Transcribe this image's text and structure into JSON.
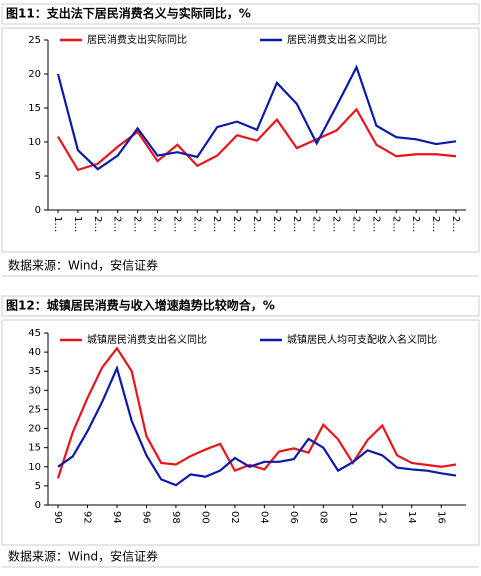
{
  "charts": [
    {
      "caption": "图11：支出法下居民消费名义与实际同比，%",
      "source": "数据来源：Wind，安信证券",
      "chart_data": {
        "type": "line",
        "categories": [
          "1…",
          "1…",
          "2…",
          "2…",
          "2…",
          "2…",
          "2…",
          "2…",
          "2…",
          "2…",
          "2…",
          "2…",
          "2…",
          "2…",
          "2…",
          "2…",
          "2…",
          "2…",
          "2…",
          "2…",
          "2…"
        ],
        "series": [
          {
            "name": "居民消费支出实际同比",
            "color": "#e8141c",
            "values": [
              10.8,
              5.9,
              6.8,
              9.3,
              11.5,
              7.2,
              9.6,
              6.5,
              8,
              11,
              10.2,
              13.3,
              9.1,
              10.4,
              11.7,
              14.8,
              9.6,
              7.9,
              8.2,
              8.2,
              7.9
            ]
          },
          {
            "name": "居民消费支出名义同比",
            "color": "#0c1aa8",
            "values": [
              20,
              8.8,
              6,
              8,
              12,
              8,
              8.5,
              7.8,
              12.2,
              13,
              11.8,
              18.7,
              15.6,
              9.8,
              15.3,
              21,
              12.4,
              10.7,
              10.4,
              9.7,
              10.1
            ]
          }
        ],
        "ylim": [
          0,
          25
        ],
        "yticks": [
          0,
          5,
          10,
          15,
          20,
          25
        ]
      }
    },
    {
      "caption": "图12：城镇居民消费与收入增速趋势比较吻合，%",
      "source": "数据来源：Wind，安信证券",
      "chart_data": {
        "type": "line",
        "categories": [
          "90",
          null,
          "92",
          null,
          "94",
          null,
          "96",
          null,
          "98",
          null,
          "00",
          null,
          "02",
          null,
          "04",
          null,
          "06",
          null,
          "08",
          null,
          "10",
          null,
          "12",
          null,
          "14",
          null,
          "16",
          null
        ],
        "series": [
          {
            "name": "城镇居民消费支出名义同比",
            "color": "#e8141c",
            "values": [
              7,
              19,
              28,
              36,
              41,
              35,
              18,
              11,
              10.6,
              12.8,
              14.5,
              16,
              9,
              10.5,
              9.3,
              14,
              14.8,
              13.7,
              21,
              17.2,
              11,
              17,
              20.8,
              13,
              11,
              10.5,
              10,
              10.6
            ]
          },
          {
            "name": "城镇居民人均可支配收入名义同比",
            "color": "#0c1aa8",
            "values": [
              10,
              12.7,
              19.3,
              27,
              35.8,
              22,
              13,
              6.7,
              5.2,
              8,
              7.4,
              9,
              12.3,
              10,
              11.3,
              11.3,
              12,
              17.3,
              15,
              9,
              11.2,
              14.3,
              13,
              9.8,
              9.3,
              9,
              8.3,
              7.7
            ]
          }
        ],
        "ylim": [
          0,
          45
        ],
        "yticks": [
          0,
          5,
          10,
          15,
          20,
          25,
          30,
          35,
          40,
          45
        ]
      }
    }
  ]
}
